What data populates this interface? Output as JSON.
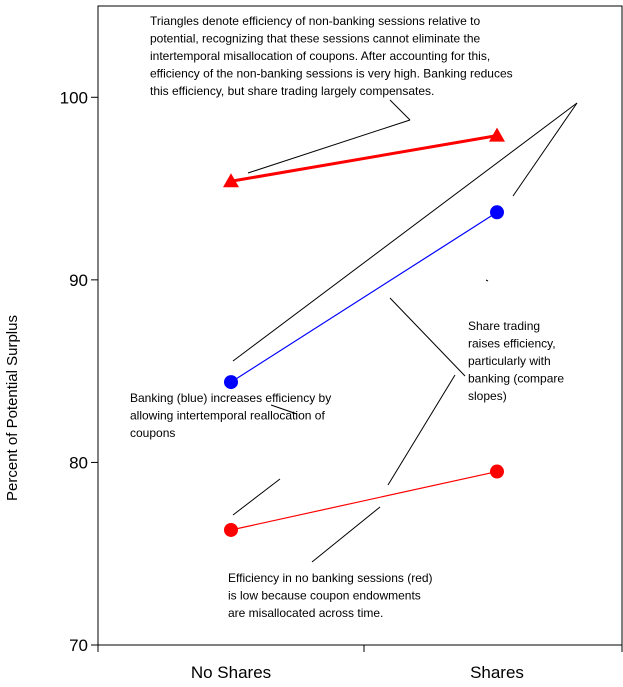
{
  "chart_data": {
    "type": "line",
    "categories": [
      "No Shares",
      "Shares"
    ],
    "ylabel": "Percent of Potential Surplus",
    "xlabel": "",
    "ylim": [
      70,
      105
    ],
    "yticks": [
      70,
      80,
      90,
      100
    ],
    "grid": false,
    "legend": "none",
    "series": [
      {
        "values": [
          95.4,
          97.9
        ],
        "marker": "triangle",
        "color": "#ff0000",
        "line": "thick"
      },
      {
        "values": [
          84.4,
          93.7
        ],
        "marker": "circle",
        "color": "#0000ff",
        "line": "thin"
      },
      {
        "values": [
          76.3,
          79.5
        ],
        "marker": "circle",
        "color": "#ff0000",
        "line": "thin"
      }
    ],
    "annotations": [
      {
        "id": "triangles",
        "lines": [
          "Triangles denote efficiency of non-banking sessions relative to",
          "potential, recognizing that  these sessions cannot eliminate  the",
          "intertemporal misallocation of coupons.   After accounting for this,",
          "efficiency of the non-banking sessions is very high.  Banking reduces",
          "this efficiency, but share trading largely compensates."
        ]
      },
      {
        "id": "share-trading",
        "lines": [
          "Share trading",
          "raises efficiency,",
          "particularly with",
          "banking (compare",
          "slopes)"
        ]
      },
      {
        "id": "banking",
        "lines": [
          "Banking  (blue)  increases  efficiency by",
          "allowing intertemporal reallocation of",
          "coupons"
        ]
      },
      {
        "id": "no-banking",
        "lines": [
          "Efficiency in no banking sessions (red)",
          "is low because coupon endowments",
          "are misallocated across time."
        ]
      }
    ]
  }
}
